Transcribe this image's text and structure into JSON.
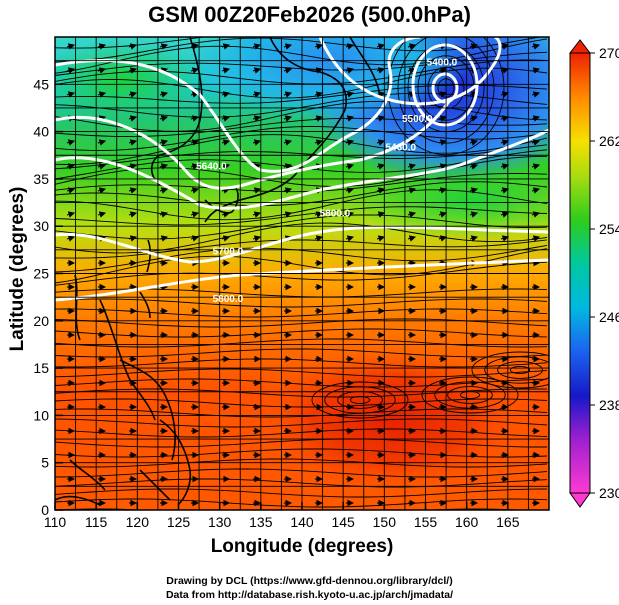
{
  "title": "GSM 00Z20Feb2026 (500.0hPa)",
  "xlabel": "Longitude (degrees)",
  "ylabel": "Latitude  (degrees)",
  "credits": [
    "Drawing by DCL (https://www.gfd-dennou.org/library/dcl/)",
    "Data from http://database.rish.kyoto-u.ac.jp/arch/jmadata/"
  ],
  "colors": {
    "cold_low": "#ff2ed8",
    "cold": "#1b1bd1",
    "cool": "#1e90ff",
    "mid": "#00c9b8",
    "mild": "#4ad81c",
    "warm": "#f9e410",
    "hot": "#ff7a00",
    "hottest": "#ee2200",
    "contour": "#ffffff"
  },
  "chart_data": {
    "type": "heatmap",
    "title": "GSM 00Z20Feb2026 (500.0hPa)",
    "xlabel": "Longitude (degrees)",
    "ylabel": "Latitude  (degrees)",
    "xlim": [
      110,
      170
    ],
    "ylim": [
      0,
      50
    ],
    "xticks": [
      "110",
      "115",
      "120",
      "125",
      "130",
      "135",
      "140",
      "145",
      "150",
      "155",
      "160",
      "165"
    ],
    "yticks": [
      "0",
      "5",
      "10",
      "15",
      "20",
      "25",
      "30",
      "35",
      "40",
      "45"
    ],
    "grid": true,
    "colorbar": {
      "range": [
        230,
        270
      ],
      "ticks": [
        "230",
        "238",
        "246",
        "254",
        "262",
        "270"
      ]
    },
    "contour_labels": [
      {
        "text": "5400.0",
        "lon": 157,
        "lat": 47
      },
      {
        "text": "5500.0",
        "lon": 154,
        "lat": 41
      },
      {
        "text": "5460.0",
        "lon": 152,
        "lat": 38
      },
      {
        "text": "5640.0",
        "lon": 129,
        "lat": 36
      },
      {
        "text": "5800.0",
        "lon": 144,
        "lat": 31
      },
      {
        "text": "5700.0",
        "lon": 131,
        "lat": 27
      },
      {
        "text": "5800.0",
        "lon": 131,
        "lat": 22
      }
    ]
  }
}
